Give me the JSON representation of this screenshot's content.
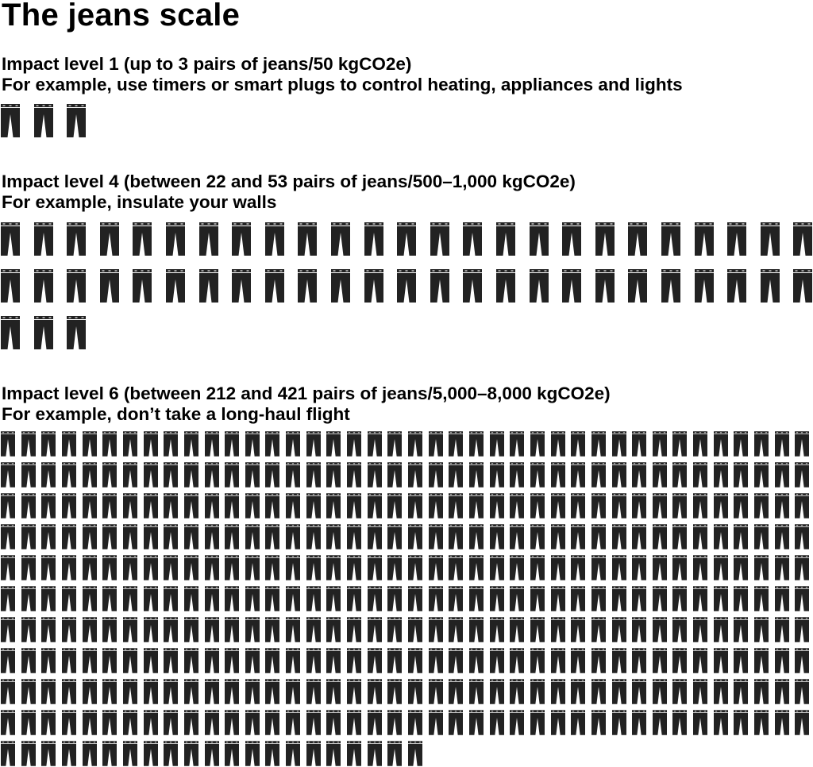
{
  "title": "The jeans scale",
  "icon": "jeans-icon",
  "icon_color": "#222222",
  "chart_data": {
    "type": "pictogram",
    "unit": "pairs of jeans",
    "levels": [
      {
        "heading": "Impact level 1 (up to 3 pairs of jeans/50 kgCO2e)",
        "example": "For example, use timers or smart plugs to control heating, appliances and lights",
        "count": 3
      },
      {
        "heading": "Impact level 4 (between 22 and 53 pairs of jeans/500–1,000 kgCO2e)",
        "example": "For example, insulate your walls",
        "count": 53
      },
      {
        "heading": "Impact level 6 (between 212 and 421 pairs of jeans/5,000–8,000 kgCO2e)",
        "example": "For example, don’t take a long-haul flight",
        "count": 421
      }
    ]
  }
}
